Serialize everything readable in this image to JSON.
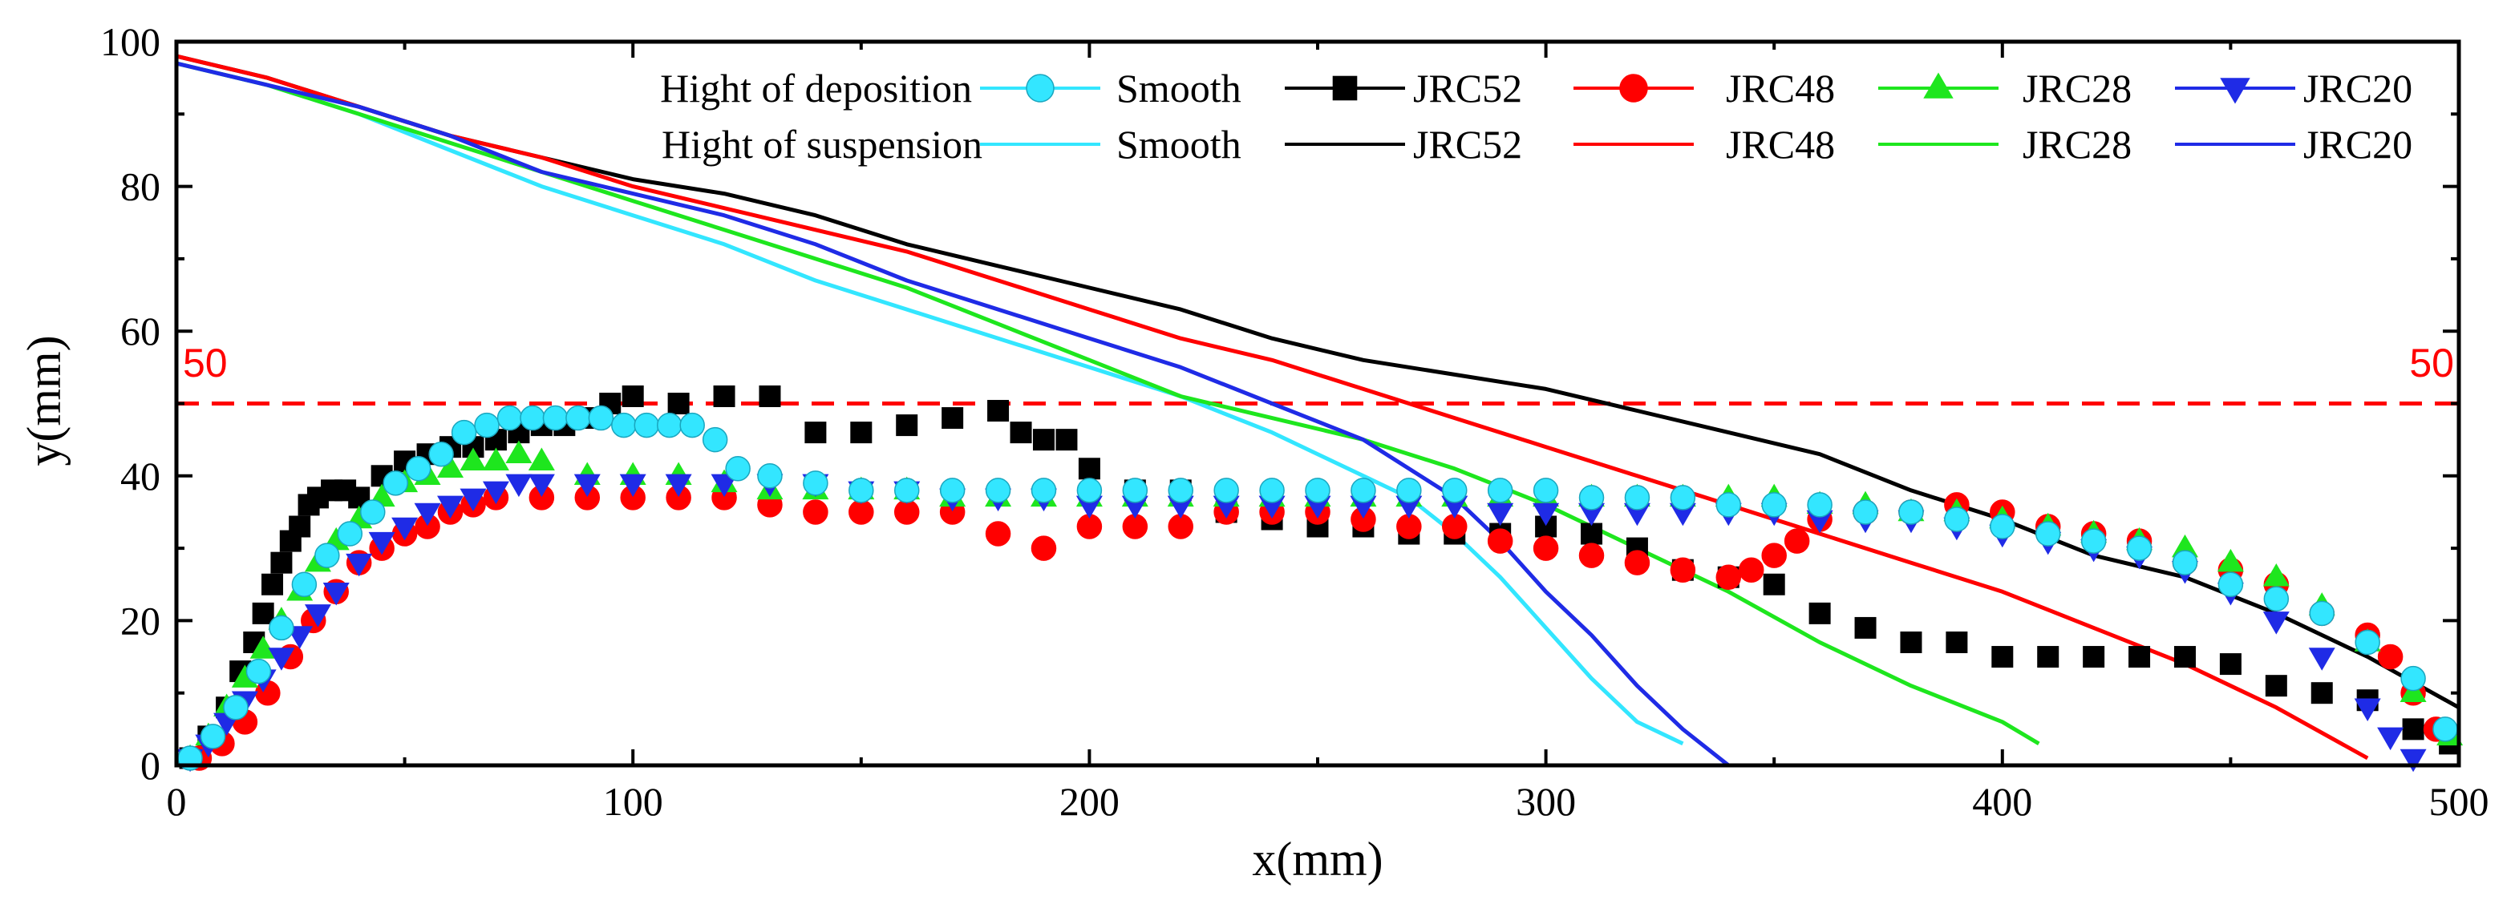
{
  "chart_data": {
    "type": "scatter",
    "xlabel": "x(mm)",
    "ylabel": "y(mm)",
    "xlim": [
      0,
      500
    ],
    "ylim": [
      0,
      100
    ],
    "x_ticks": [
      0,
      100,
      200,
      300,
      400,
      500
    ],
    "y_ticks": [
      0,
      20,
      40,
      60,
      80,
      100
    ],
    "grid": false,
    "legend_location": "top-right",
    "legend_row_labels": [
      "Hight of deposition",
      "Hight of suspension"
    ],
    "reference_line": {
      "y": 50,
      "color": "#ff0000",
      "style": "dashed",
      "label_left": "50",
      "label_right": "50"
    },
    "series": [
      {
        "name": "Smooth",
        "kind": "deposition",
        "color": "#33e6ff",
        "marker": "circle",
        "x": [
          3,
          8,
          13,
          18,
          23,
          28,
          33,
          38,
          43,
          48,
          53,
          58,
          63,
          68,
          73,
          78,
          83,
          88,
          93,
          98,
          103,
          108,
          113,
          118,
          123,
          130,
          140,
          150,
          160,
          170,
          180,
          190,
          200,
          210,
          220,
          230,
          240,
          250,
          260,
          270,
          280,
          290,
          300,
          310,
          320,
          330,
          340,
          350,
          360,
          370,
          380,
          390,
          400,
          410,
          420,
          430,
          440,
          450,
          460,
          470,
          480,
          490,
          497
        ],
        "y": [
          1,
          4,
          8,
          13,
          19,
          25,
          29,
          32,
          35,
          39,
          41,
          43,
          46,
          47,
          48,
          48,
          48,
          48,
          48,
          47,
          47,
          47,
          47,
          45,
          41,
          40,
          39,
          38,
          38,
          38,
          38,
          38,
          38,
          38,
          38,
          38,
          38,
          38,
          38,
          38,
          38,
          38,
          38,
          37,
          37,
          37,
          36,
          36,
          36,
          35,
          35,
          34,
          33,
          32,
          31,
          30,
          28,
          25,
          23,
          21,
          17,
          12,
          5
        ]
      },
      {
        "name": "JRC52",
        "kind": "deposition",
        "color": "#000000",
        "marker": "square",
        "x": [
          3,
          7,
          11,
          14,
          17,
          19,
          21,
          23,
          25,
          27,
          29,
          31,
          34,
          37,
          40,
          45,
          50,
          55,
          60,
          65,
          70,
          75,
          80,
          85,
          90,
          95,
          100,
          110,
          120,
          130,
          140,
          150,
          160,
          170,
          180,
          185,
          190,
          195,
          200,
          210,
          220,
          230,
          240,
          250,
          260,
          270,
          280,
          290,
          300,
          310,
          320,
          330,
          340,
          350,
          360,
          370,
          380,
          390,
          400,
          410,
          420,
          430,
          440,
          450,
          460,
          470,
          480,
          490,
          498
        ],
        "y": [
          1,
          4,
          8,
          13,
          17,
          21,
          25,
          28,
          31,
          33,
          36,
          37,
          38,
          38,
          37,
          40,
          42,
          43,
          44,
          44,
          45,
          46,
          47,
          47,
          48,
          50,
          51,
          50,
          51,
          51,
          46,
          46,
          47,
          48,
          49,
          46,
          45,
          45,
          41,
          38,
          38,
          35,
          34,
          33,
          33,
          32,
          32,
          32,
          33,
          32,
          30,
          27,
          26,
          25,
          21,
          19,
          17,
          17,
          15,
          15,
          15,
          15,
          15,
          14,
          11,
          10,
          9,
          5,
          3
        ]
      },
      {
        "name": "JRC48",
        "kind": "deposition",
        "color": "#ff0000",
        "marker": "circle",
        "x": [
          5,
          10,
          15,
          20,
          25,
          30,
          35,
          40,
          45,
          50,
          55,
          60,
          65,
          70,
          80,
          90,
          100,
          110,
          120,
          130,
          140,
          150,
          160,
          170,
          180,
          190,
          200,
          210,
          220,
          230,
          240,
          250,
          260,
          270,
          280,
          290,
          300,
          310,
          320,
          330,
          340,
          345,
          350,
          355,
          360,
          370,
          380,
          390,
          400,
          410,
          420,
          430,
          440,
          450,
          460,
          470,
          480,
          485,
          490,
          495
        ],
        "y": [
          1,
          3,
          6,
          10,
          15,
          20,
          24,
          28,
          30,
          32,
          33,
          35,
          36,
          37,
          37,
          37,
          37,
          37,
          37,
          36,
          35,
          35,
          35,
          35,
          32,
          30,
          33,
          33,
          33,
          35,
          35,
          35,
          34,
          33,
          33,
          31,
          30,
          29,
          28,
          27,
          26,
          27,
          29,
          31,
          34,
          35,
          35,
          36,
          35,
          33,
          32,
          31,
          28,
          27,
          25,
          21,
          18,
          15,
          10,
          5
        ]
      },
      {
        "name": "JRC28",
        "kind": "deposition",
        "color": "#1ee61e",
        "marker": "triangle-up",
        "x": [
          3,
          7,
          11,
          15,
          19,
          23,
          27,
          31,
          35,
          40,
          45,
          50,
          55,
          60,
          65,
          70,
          75,
          80,
          90,
          100,
          110,
          120,
          130,
          140,
          150,
          160,
          170,
          180,
          190,
          200,
          210,
          220,
          230,
          240,
          250,
          260,
          270,
          280,
          290,
          300,
          310,
          320,
          330,
          340,
          350,
          360,
          370,
          380,
          390,
          400,
          410,
          420,
          430,
          440,
          450,
          460,
          470,
          480,
          490,
          498
        ],
        "y": [
          1,
          4,
          8,
          12,
          16,
          20,
          24,
          28,
          31,
          34,
          37,
          39,
          40,
          41,
          42,
          42,
          43,
          42,
          40,
          40,
          40,
          39,
          38,
          38,
          38,
          38,
          37,
          37,
          37,
          37,
          37,
          37,
          37,
          37,
          37,
          37,
          37,
          37,
          37,
          37,
          37,
          37,
          37,
          37,
          37,
          36,
          36,
          35,
          35,
          34,
          33,
          32,
          31,
          30,
          28,
          26,
          22,
          17,
          10,
          4
        ]
      },
      {
        "name": "JRC20",
        "kind": "deposition",
        "color": "#1f2be6",
        "marker": "triangle-down",
        "x": [
          3,
          7,
          11,
          15,
          19,
          23,
          27,
          31,
          35,
          40,
          45,
          50,
          55,
          60,
          65,
          70,
          75,
          80,
          90,
          100,
          110,
          120,
          130,
          140,
          150,
          160,
          170,
          180,
          190,
          200,
          210,
          220,
          230,
          240,
          250,
          260,
          270,
          280,
          290,
          300,
          310,
          320,
          330,
          340,
          350,
          360,
          370,
          380,
          390,
          400,
          410,
          420,
          430,
          440,
          450,
          460,
          470,
          480,
          485,
          490
        ],
        "y": [
          1,
          3,
          6,
          9,
          12,
          15,
          18,
          21,
          24,
          28,
          31,
          33,
          35,
          36,
          37,
          38,
          39,
          39,
          39,
          39,
          39,
          39,
          39,
          39,
          38,
          38,
          37,
          37,
          37,
          36,
          36,
          36,
          36,
          36,
          36,
          36,
          36,
          36,
          35,
          35,
          35,
          35,
          35,
          35,
          35,
          34,
          34,
          34,
          33,
          32,
          31,
          30,
          29,
          27,
          24,
          20,
          15,
          8,
          4,
          1
        ]
      },
      {
        "name": "Smooth",
        "kind": "suspension",
        "color": "#33e6ff",
        "marker": "line",
        "x": [
          0,
          20,
          40,
          60,
          80,
          100,
          120,
          140,
          160,
          180,
          200,
          220,
          240,
          260,
          270,
          280,
          290,
          300,
          310,
          320,
          330
        ],
        "y": [
          97,
          94,
          90,
          85,
          80,
          76,
          72,
          67,
          63,
          59,
          55,
          51,
          46,
          40,
          37,
          32,
          26,
          19,
          12,
          6,
          3
        ]
      },
      {
        "name": "JRC52",
        "kind": "suspension",
        "color": "#000000",
        "marker": "line",
        "x": [
          0,
          20,
          40,
          60,
          80,
          100,
          120,
          140,
          160,
          180,
          200,
          220,
          240,
          260,
          280,
          300,
          320,
          340,
          360,
          380,
          400,
          420,
          440,
          460,
          480,
          500
        ],
        "y": [
          98,
          95,
          91,
          87,
          84,
          81,
          79,
          76,
          72,
          69,
          66,
          63,
          59,
          56,
          54,
          52,
          49,
          46,
          43,
          38,
          34,
          29,
          26,
          21,
          15,
          8
        ]
      },
      {
        "name": "JRC48",
        "kind": "suspension",
        "color": "#ff0000",
        "marker": "line",
        "x": [
          0,
          20,
          40,
          60,
          80,
          100,
          120,
          140,
          160,
          180,
          200,
          220,
          240,
          260,
          280,
          300,
          320,
          340,
          360,
          380,
          400,
          420,
          440,
          460,
          480
        ],
        "y": [
          98,
          95,
          91,
          87,
          84,
          80,
          77,
          74,
          71,
          67,
          63,
          59,
          56,
          52,
          48,
          44,
          40,
          36,
          32,
          28,
          24,
          19,
          14,
          8,
          1
        ]
      },
      {
        "name": "JRC28",
        "kind": "suspension",
        "color": "#1ee61e",
        "marker": "line",
        "x": [
          0,
          20,
          40,
          60,
          80,
          100,
          120,
          140,
          160,
          180,
          200,
          220,
          240,
          260,
          280,
          300,
          320,
          340,
          360,
          380,
          400,
          408
        ],
        "y": [
          97,
          94,
          90,
          86,
          82,
          78,
          74,
          70,
          66,
          61,
          56,
          51,
          48,
          45,
          41,
          36,
          30,
          24,
          17,
          11,
          6,
          3
        ]
      },
      {
        "name": "JRC20",
        "kind": "suspension",
        "color": "#1f2be6",
        "marker": "line",
        "x": [
          0,
          20,
          40,
          60,
          80,
          100,
          120,
          140,
          160,
          180,
          200,
          220,
          240,
          260,
          280,
          290,
          300,
          310,
          320,
          330,
          340
        ],
        "y": [
          97,
          94,
          91,
          87,
          82,
          79,
          76,
          72,
          67,
          63,
          59,
          55,
          50,
          45,
          37,
          31,
          24,
          18,
          11,
          5,
          0
        ]
      }
    ]
  }
}
